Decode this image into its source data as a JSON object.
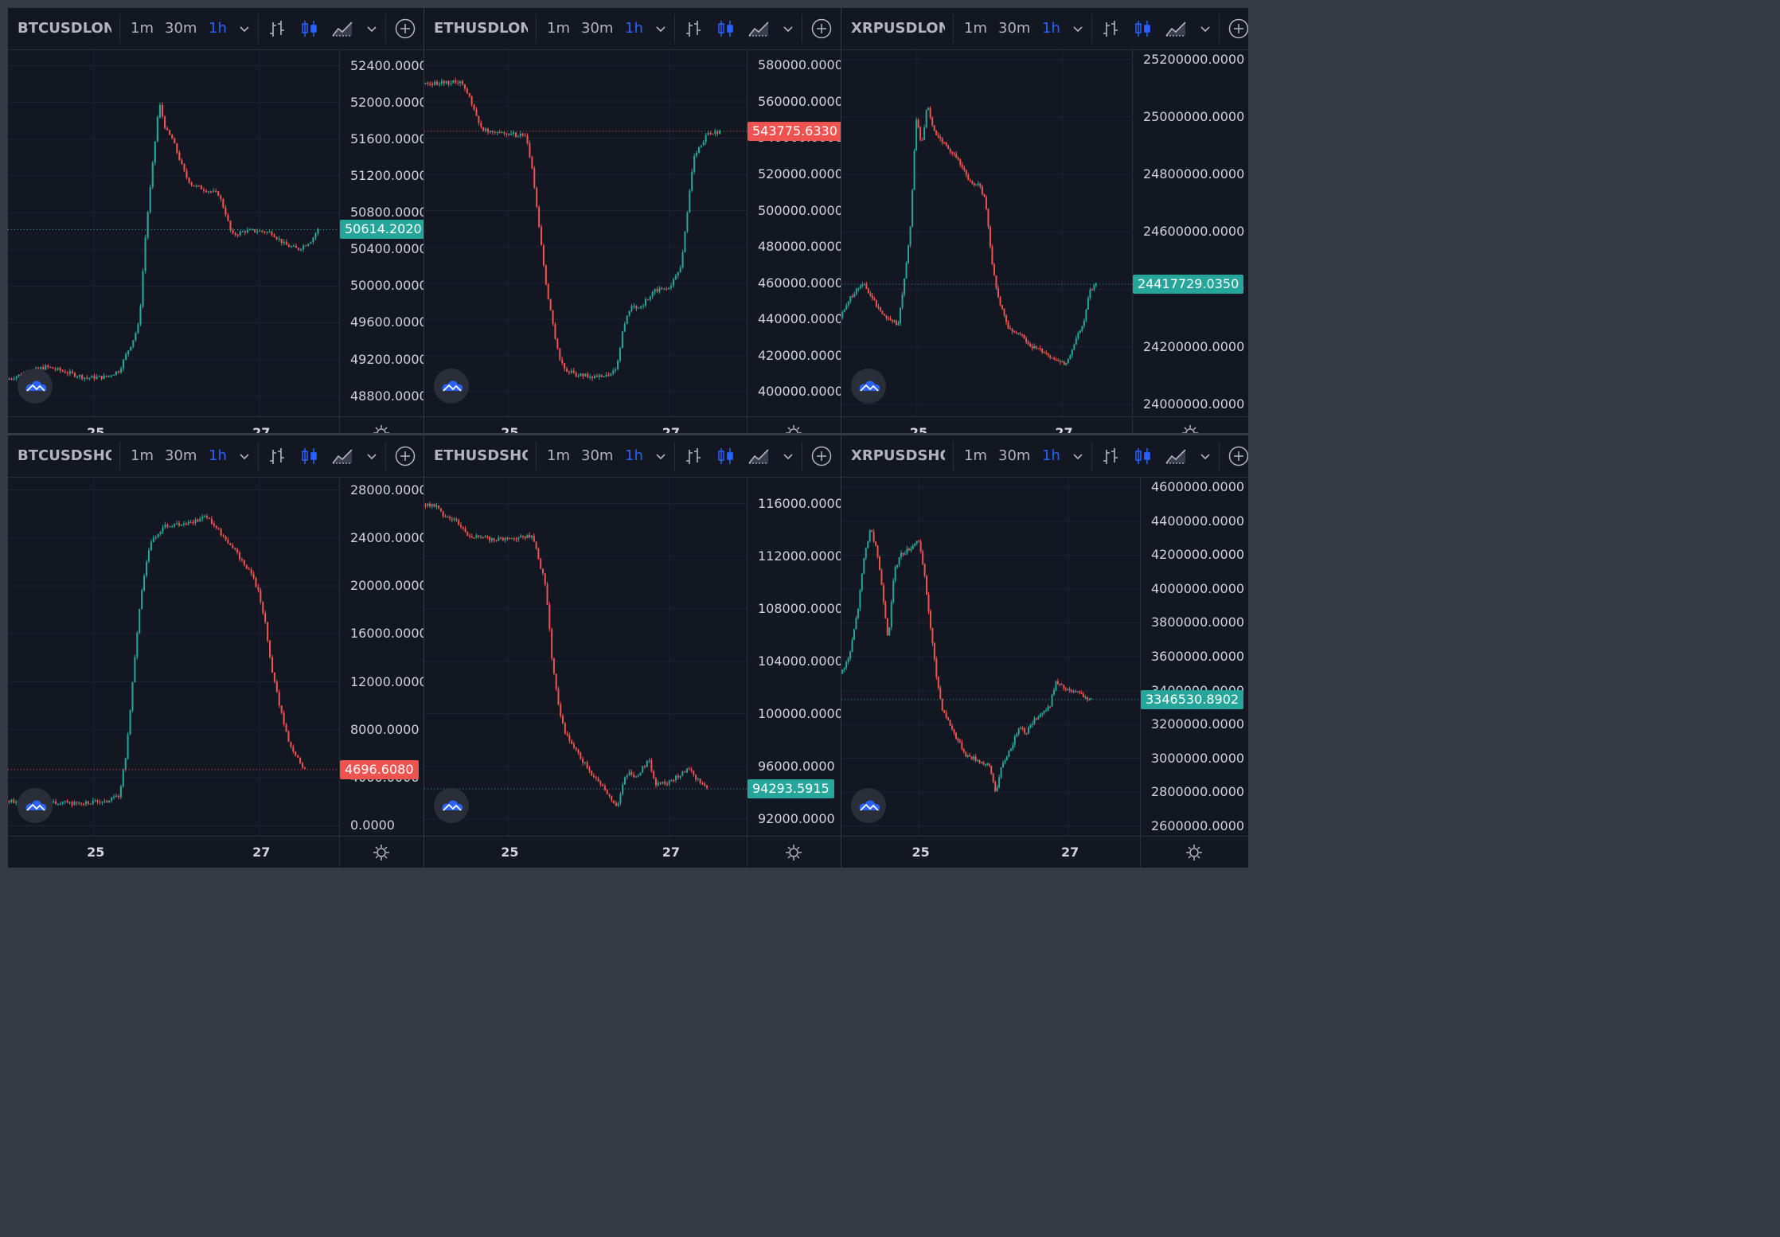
{
  "timeframes": [
    "1m",
    "30m",
    "1h"
  ],
  "active_timeframe": "1h",
  "x_axis_labels": [
    "25",
    "27"
  ],
  "colors": {
    "up": "#26a69a",
    "down": "#ef5350",
    "background": "#131722",
    "grid": "#1f2330",
    "accent": "#2962ff"
  },
  "icons": [
    "bar-chart-icon",
    "candles-icon",
    "area-chart-icon",
    "chevron-down-icon",
    "add-indicator-icon",
    "logo-icon",
    "settings-icon"
  ],
  "panels": [
    {
      "symbol": "BTCUSDLONG",
      "last_price": "50614.2020",
      "last_color": "up",
      "y_ticks": [
        "52400.0000",
        "52000.0000",
        "51600.0000",
        "51200.0000",
        "50800.0000",
        "50400.0000",
        "50000.0000",
        "49600.0000",
        "49200.0000",
        "48800.0000"
      ]
    },
    {
      "symbol": "ETHUSDLONG",
      "last_price": "543775.6330",
      "last_color": "down",
      "y_ticks": [
        "580000.0000",
        "560000.0000",
        "540000.0000",
        "520000.0000",
        "500000.0000",
        "480000.0000",
        "460000.0000",
        "440000.0000",
        "420000.0000",
        "400000.0000"
      ]
    },
    {
      "symbol": "XRPUSDLONG",
      "last_price": "24417729.0350",
      "last_color": "up",
      "y_ticks": [
        "25200000.0000",
        "25000000.0000",
        "24800000.0000",
        "24600000.0000",
        "24400000.0000",
        "24200000.0000",
        "24000000.0000"
      ]
    },
    {
      "symbol": "BTCUSDSHORT",
      "last_price": "4696.6080",
      "last_color": "down",
      "y_ticks": [
        "28000.0000",
        "24000.0000",
        "20000.0000",
        "16000.0000",
        "12000.0000",
        "8000.0000",
        "4000.0000",
        "0.0000"
      ]
    },
    {
      "symbol": "ETHUSDSHORT",
      "last_price": "94293.5915",
      "last_color": "up",
      "y_ticks": [
        "116000.0000",
        "112000.0000",
        "108000.0000",
        "104000.0000",
        "100000.0000",
        "96000.0000",
        "92000.0000"
      ]
    },
    {
      "symbol": "XRPUSDSHORT",
      "last_price": "3346530.8902",
      "last_color": "up",
      "y_ticks": [
        "4600000.0000",
        "4400000.0000",
        "4200000.0000",
        "4000000.0000",
        "3800000.0000",
        "3600000.0000",
        "3400000.0000",
        "3200000.0000",
        "3000000.0000",
        "2800000.0000",
        "2600000.0000"
      ]
    }
  ],
  "chart_data": [
    {
      "type": "candlestick",
      "symbol": "BTCUSDLONG",
      "timeframe": "1h",
      "ylim": [
        48650,
        52500
      ],
      "last": 50614.202,
      "x_labels": [
        "25",
        "27"
      ],
      "grid": true,
      "path": [
        [
          0,
          48980
        ],
        [
          0.06,
          49060
        ],
        [
          0.12,
          49120
        ],
        [
          0.18,
          49060
        ],
        [
          0.24,
          49000
        ],
        [
          0.3,
          49010
        ],
        [
          0.34,
          49080
        ],
        [
          0.36,
          49250
        ],
        [
          0.38,
          49400
        ],
        [
          0.4,
          49600
        ],
        [
          0.42,
          50600
        ],
        [
          0.44,
          51300
        ],
        [
          0.46,
          52000
        ],
        [
          0.48,
          51700
        ],
        [
          0.5,
          51600
        ],
        [
          0.52,
          51400
        ],
        [
          0.54,
          51200
        ],
        [
          0.56,
          51100
        ],
        [
          0.6,
          51050
        ],
        [
          0.64,
          51000
        ],
        [
          0.66,
          50800
        ],
        [
          0.68,
          50550
        ],
        [
          0.72,
          50600
        ],
        [
          0.76,
          50600
        ],
        [
          0.8,
          50580
        ],
        [
          0.84,
          50450
        ],
        [
          0.88,
          50400
        ],
        [
          0.9,
          50450
        ],
        [
          0.92,
          50500
        ],
        [
          0.94,
          50614
        ]
      ]
    },
    {
      "type": "candlestick",
      "symbol": "ETHUSDLONG",
      "timeframe": "1h",
      "ylim": [
        390000,
        585000
      ],
      "last": 543775.633,
      "x_labels": [
        "25",
        "27"
      ],
      "grid": true,
      "path": [
        [
          0,
          570000
        ],
        [
          0.12,
          571000
        ],
        [
          0.15,
          560000
        ],
        [
          0.18,
          545000
        ],
        [
          0.32,
          541000
        ],
        [
          0.34,
          520000
        ],
        [
          0.36,
          490000
        ],
        [
          0.38,
          460000
        ],
        [
          0.4,
          440000
        ],
        [
          0.42,
          420000
        ],
        [
          0.44,
          412000
        ],
        [
          0.48,
          409000
        ],
        [
          0.56,
          408000
        ],
        [
          0.6,
          412000
        ],
        [
          0.62,
          435000
        ],
        [
          0.64,
          446000
        ],
        [
          0.68,
          448000
        ],
        [
          0.72,
          456000
        ],
        [
          0.76,
          457000
        ],
        [
          0.8,
          468000
        ],
        [
          0.82,
          500000
        ],
        [
          0.84,
          530000
        ],
        [
          0.88,
          542000
        ],
        [
          0.92,
          543775
        ]
      ]
    },
    {
      "type": "candlestick",
      "symbol": "XRPUSDLONG",
      "timeframe": "1h",
      "ylim": [
        23980000,
        25210000
      ],
      "last": 24417729.035,
      "x_labels": [
        "25",
        "27"
      ],
      "grid": true,
      "path": [
        [
          0,
          24300000
        ],
        [
          0.04,
          24380000
        ],
        [
          0.08,
          24420000
        ],
        [
          0.12,
          24350000
        ],
        [
          0.16,
          24300000
        ],
        [
          0.2,
          24280000
        ],
        [
          0.24,
          24600000
        ],
        [
          0.26,
          25000000
        ],
        [
          0.28,
          24900000
        ],
        [
          0.3,
          25050000
        ],
        [
          0.32,
          24950000
        ],
        [
          0.36,
          24900000
        ],
        [
          0.4,
          24860000
        ],
        [
          0.44,
          24780000
        ],
        [
          0.48,
          24760000
        ],
        [
          0.5,
          24700000
        ],
        [
          0.52,
          24500000
        ],
        [
          0.54,
          24380000
        ],
        [
          0.58,
          24260000
        ],
        [
          0.62,
          24240000
        ],
        [
          0.66,
          24200000
        ],
        [
          0.7,
          24180000
        ],
        [
          0.74,
          24150000
        ],
        [
          0.78,
          24140000
        ],
        [
          0.8,
          24200000
        ],
        [
          0.84,
          24300000
        ],
        [
          0.86,
          24400000
        ],
        [
          0.88,
          24417729
        ]
      ]
    },
    {
      "type": "candlestick",
      "symbol": "BTCUSDSHORT",
      "timeframe": "1h",
      "ylim": [
        -300,
        28500
      ],
      "last": 4696.608,
      "x_labels": [
        "25",
        "27"
      ],
      "grid": true,
      "path": [
        [
          0,
          2100
        ],
        [
          0.1,
          2000
        ],
        [
          0.2,
          1900
        ],
        [
          0.3,
          2000
        ],
        [
          0.34,
          2500
        ],
        [
          0.36,
          6000
        ],
        [
          0.38,
          12000
        ],
        [
          0.4,
          18000
        ],
        [
          0.42,
          22000
        ],
        [
          0.44,
          24000
        ],
        [
          0.48,
          25000
        ],
        [
          0.52,
          25200
        ],
        [
          0.58,
          25400
        ],
        [
          0.6,
          26000
        ],
        [
          0.62,
          25200
        ],
        [
          0.66,
          24000
        ],
        [
          0.7,
          22500
        ],
        [
          0.74,
          21000
        ],
        [
          0.76,
          19500
        ],
        [
          0.78,
          17000
        ],
        [
          0.8,
          13000
        ],
        [
          0.82,
          10500
        ],
        [
          0.84,
          8000
        ],
        [
          0.86,
          6500
        ],
        [
          0.88,
          5500
        ],
        [
          0.9,
          4697
        ]
      ]
    },
    {
      "type": "candlestick",
      "symbol": "ETHUSDSHORT",
      "timeframe": "1h",
      "ylim": [
        91200,
        117500
      ],
      "last": 94293.5915,
      "x_labels": [
        "25",
        "27"
      ],
      "grid": true,
      "path": [
        [
          0,
          115900
        ],
        [
          0.04,
          115800
        ],
        [
          0.06,
          115200
        ],
        [
          0.1,
          114800
        ],
        [
          0.14,
          113600
        ],
        [
          0.18,
          113400
        ],
        [
          0.22,
          113300
        ],
        [
          0.3,
          113400
        ],
        [
          0.34,
          113600
        ],
        [
          0.36,
          111500
        ],
        [
          0.38,
          109800
        ],
        [
          0.4,
          104000
        ],
        [
          0.42,
          100500
        ],
        [
          0.44,
          98500
        ],
        [
          0.48,
          97000
        ],
        [
          0.52,
          95500
        ],
        [
          0.56,
          94500
        ],
        [
          0.58,
          93500
        ],
        [
          0.6,
          92800
        ],
        [
          0.62,
          94800
        ],
        [
          0.64,
          95600
        ],
        [
          0.66,
          95200
        ],
        [
          0.7,
          96500
        ],
        [
          0.72,
          94600
        ],
        [
          0.76,
          94800
        ],
        [
          0.8,
          95400
        ],
        [
          0.82,
          95800
        ],
        [
          0.84,
          95300
        ],
        [
          0.86,
          94800
        ],
        [
          0.88,
          94293
        ]
      ]
    },
    {
      "type": "candlestick",
      "symbol": "XRPUSDSHORT",
      "timeframe": "1h",
      "ylim": [
        2580000,
        4620000
      ],
      "last": 3346530.8902,
      "x_labels": [
        "25",
        "27"
      ],
      "grid": true,
      "path": [
        [
          0,
          3500000
        ],
        [
          0.03,
          3600000
        ],
        [
          0.06,
          3900000
        ],
        [
          0.08,
          4200000
        ],
        [
          0.1,
          4350000
        ],
        [
          0.12,
          4250000
        ],
        [
          0.14,
          4000000
        ],
        [
          0.16,
          3700000
        ],
        [
          0.18,
          4100000
        ],
        [
          0.2,
          4200000
        ],
        [
          0.24,
          4250000
        ],
        [
          0.26,
          4300000
        ],
        [
          0.28,
          4100000
        ],
        [
          0.3,
          3800000
        ],
        [
          0.32,
          3500000
        ],
        [
          0.34,
          3300000
        ],
        [
          0.38,
          3150000
        ],
        [
          0.42,
          3020000
        ],
        [
          0.46,
          2990000
        ],
        [
          0.5,
          2950000
        ],
        [
          0.52,
          2800000
        ],
        [
          0.54,
          2950000
        ],
        [
          0.58,
          3100000
        ],
        [
          0.6,
          3200000
        ],
        [
          0.62,
          3150000
        ],
        [
          0.66,
          3250000
        ],
        [
          0.7,
          3300000
        ],
        [
          0.72,
          3450000
        ],
        [
          0.76,
          3400000
        ],
        [
          0.8,
          3380000
        ],
        [
          0.84,
          3346530
        ]
      ]
    }
  ]
}
